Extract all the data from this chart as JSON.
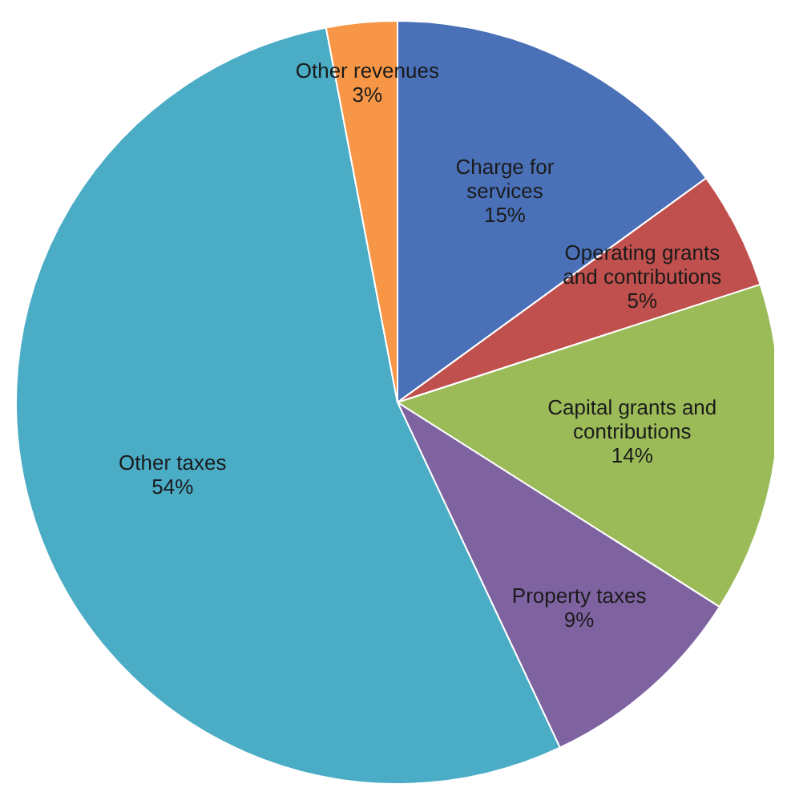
{
  "chart_data": {
    "type": "pie",
    "categories": [
      "Charge for services",
      "Operating grants and contributions",
      "Capital grants and contributions",
      "Property taxes",
      "Other taxes",
      "Other revenues"
    ],
    "values": [
      15,
      5,
      14,
      9,
      54,
      3
    ],
    "value_labels": [
      "15%",
      "5%",
      "14%",
      "9%",
      "54%",
      "3%"
    ],
    "colors": [
      "#4a71b8",
      "#c0504d",
      "#9bbb59",
      "#7f63a1",
      "#4bacc6",
      "#f79646"
    ]
  }
}
